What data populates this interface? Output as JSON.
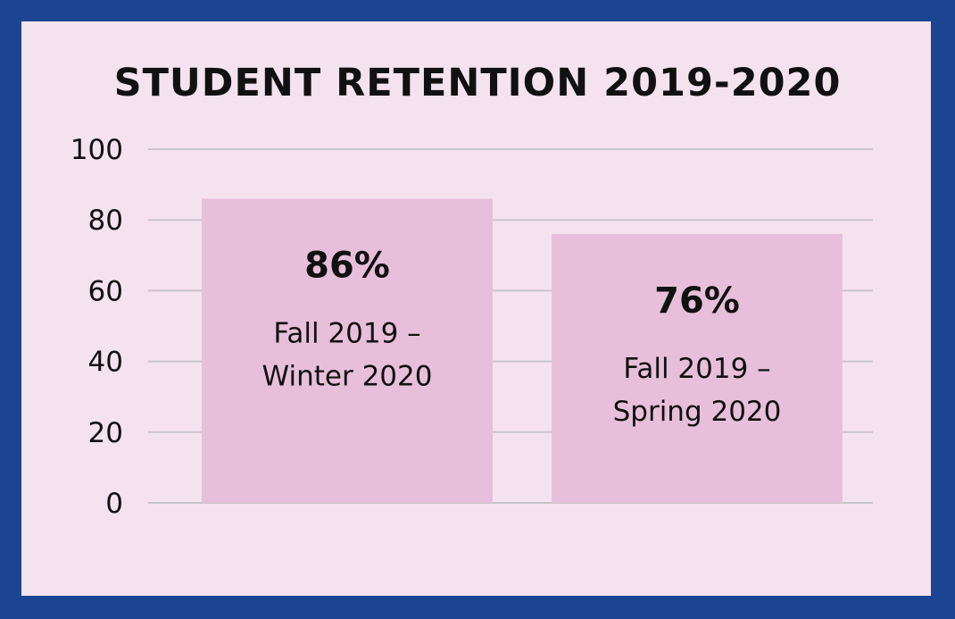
{
  "chart_data": {
    "type": "bar",
    "title": "STUDENT RETENTION 2019-2020",
    "categories": [
      [
        "Fall 2019 –",
        "Winter 2020"
      ],
      [
        "Fall 2019 –",
        "Spring 2020"
      ]
    ],
    "values": [
      86,
      76
    ],
    "data_labels": [
      "86%",
      "76%"
    ],
    "yticks": [
      "0",
      "20",
      "40",
      "60",
      "80",
      "100"
    ],
    "ylim": [
      0,
      100
    ],
    "grid": true,
    "legend": "none",
    "colors": {
      "frame": "#1c4591",
      "background": "#f5e2ef",
      "bar": "#e8bfdb",
      "grid": "#c9c4cb"
    }
  }
}
